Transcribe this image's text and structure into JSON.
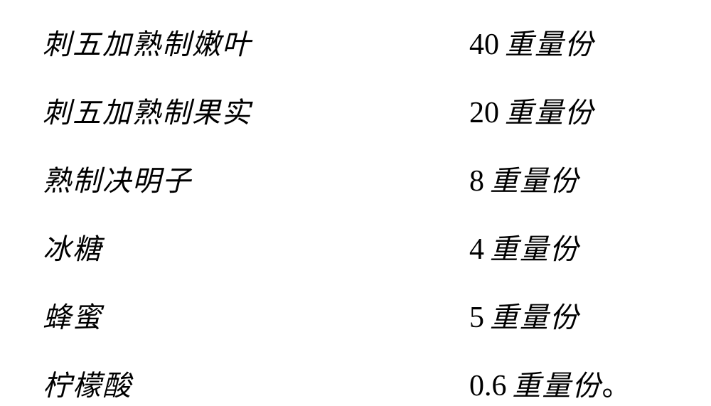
{
  "rows": [
    {
      "label": "刺五加熟制嫩叶",
      "value": "40",
      "unit": "重量份",
      "suffix": ""
    },
    {
      "label": "刺五加熟制果实",
      "value": "20",
      "unit": "重量份",
      "suffix": ""
    },
    {
      "label": "熟制决明子",
      "value": "8",
      "unit": "重量份",
      "suffix": ""
    },
    {
      "label": "冰糖",
      "value": "4",
      "unit": "重量份",
      "suffix": ""
    },
    {
      "label": "蜂蜜",
      "value": "5",
      "unit": "重量份",
      "suffix": ""
    },
    {
      "label": "柠檬酸",
      "value": "0.6",
      "unit": "重量份",
      "suffix": "。"
    }
  ],
  "styling": {
    "background_color": "#ffffff",
    "text_color": "#000000",
    "label_fontsize": 40,
    "value_fontsize": 42,
    "font_family_cjk": "KaiTi",
    "font_family_numeric": "Times New Roman",
    "row_spacing": 38,
    "letter_spacing": 2
  }
}
